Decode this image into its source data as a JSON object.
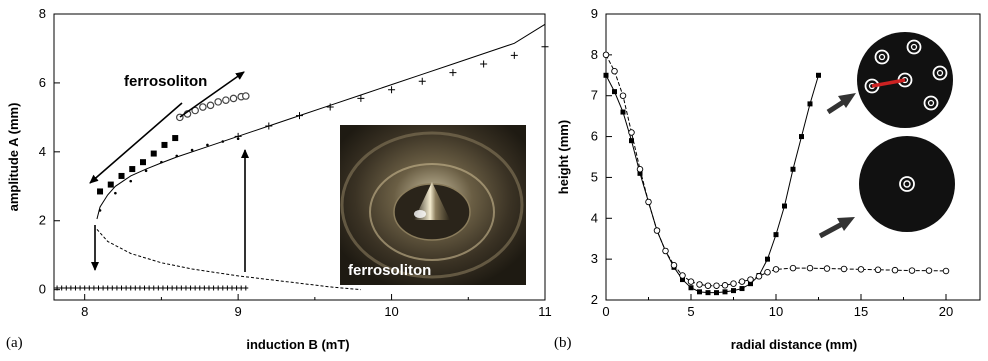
{
  "chart_data": [
    {
      "panel": "(a)",
      "type": "scatter",
      "xlabel": "induction B (mT)",
      "ylabel": "amplitude A (mm)",
      "xlim": [
        7.8,
        11
      ],
      "ylim": [
        -0.3,
        8
      ],
      "xticks": [
        "8",
        "9",
        "10",
        "11"
      ],
      "yticks": [
        "0",
        "2",
        "4",
        "6",
        "8"
      ],
      "annotations": {
        "arrow_label": "ferrosoliton",
        "photo_label": "ferrosoliton"
      },
      "series": [
        {
          "marker": "filled-square",
          "x": [
            8.1,
            8.17,
            8.24,
            8.31,
            8.38,
            8.45,
            8.52,
            8.59
          ],
          "y": [
            2.85,
            3.05,
            3.3,
            3.5,
            3.7,
            3.95,
            4.2,
            4.4
          ]
        },
        {
          "marker": "open-circle",
          "x": [
            8.62,
            8.67,
            8.72,
            8.77,
            8.82,
            8.87,
            8.92,
            8.97,
            9.02,
            9.05
          ],
          "y": [
            5.0,
            5.1,
            5.2,
            5.3,
            5.35,
            5.45,
            5.5,
            5.55,
            5.6,
            5.62
          ]
        },
        {
          "marker": "plus",
          "description": "flat surface",
          "x_range": [
            7.82,
            9.05
          ],
          "y": 0.05
        },
        {
          "marker": "dots",
          "x": [
            8.1,
            8.2,
            8.3,
            8.4,
            8.5,
            8.6,
            8.7,
            8.8,
            8.9,
            9.0
          ],
          "y": [
            2.3,
            2.8,
            3.15,
            3.45,
            3.7,
            3.88,
            4.05,
            4.2,
            4.3,
            4.38
          ]
        },
        {
          "marker": "plus",
          "x": [
            9.0,
            9.2,
            9.4,
            9.6,
            9.8,
            10.0,
            10.2,
            10.4,
            10.6,
            10.8,
            11.0
          ],
          "y": [
            4.45,
            4.75,
            5.05,
            5.3,
            5.55,
            5.8,
            6.05,
            6.3,
            6.55,
            6.8,
            7.05
          ]
        },
        {
          "line": "solid",
          "description": "theory upper branch",
          "x": [
            8.08,
            8.1,
            8.15,
            8.2,
            8.3,
            8.4,
            8.5,
            8.6,
            8.8,
            9.0,
            9.2,
            9.4,
            9.6,
            9.8,
            10.0,
            10.2,
            10.4,
            10.6,
            10.8,
            11.0
          ],
          "y": [
            2.05,
            2.4,
            2.75,
            3.0,
            3.3,
            3.5,
            3.68,
            3.85,
            4.15,
            4.45,
            4.75,
            5.05,
            5.35,
            5.65,
            5.95,
            6.25,
            6.55,
            6.85,
            7.15,
            7.7
          ]
        },
        {
          "line": "dashed",
          "description": "theory unstable branch",
          "x": [
            8.08,
            8.15,
            8.3,
            8.5,
            8.7,
            9.0,
            9.3,
            9.6,
            9.8
          ],
          "y": [
            1.75,
            1.4,
            1.05,
            0.78,
            0.6,
            0.4,
            0.24,
            0.08,
            0.0
          ]
        }
      ]
    },
    {
      "panel": "(b)",
      "type": "line",
      "xlabel": "radial distance (mm)",
      "ylabel": "height (mm)",
      "xlim": [
        0,
        22
      ],
      "ylim": [
        2,
        9
      ],
      "xticks": [
        "0",
        "5",
        "10",
        "15",
        "20"
      ],
      "yticks": [
        "2",
        "3",
        "4",
        "5",
        "6",
        "7",
        "8",
        "9"
      ],
      "series": [
        {
          "marker": "filled-square",
          "line": "solid",
          "x": [
            0,
            0.5,
            1,
            1.5,
            2,
            2.5,
            3,
            3.5,
            4,
            4.5,
            5,
            5.5,
            6,
            6.5,
            7,
            7.5,
            8,
            8.5,
            9,
            9.5,
            10,
            10.5,
            11,
            11.5,
            12,
            12.5
          ],
          "y": [
            7.5,
            7.1,
            6.6,
            5.9,
            5.1,
            4.4,
            3.7,
            3.2,
            2.8,
            2.5,
            2.3,
            2.2,
            2.18,
            2.18,
            2.2,
            2.23,
            2.28,
            2.4,
            2.6,
            3.0,
            3.6,
            4.3,
            5.2,
            6.0,
            6.8,
            7.5
          ]
        },
        {
          "marker": "open-circle",
          "line": "dashed",
          "x": [
            0,
            0.5,
            1,
            1.5,
            2,
            2.5,
            3,
            3.5,
            4,
            4.5,
            5,
            5.5,
            6,
            6.5,
            7,
            7.5,
            8,
            8.5,
            9,
            9.5,
            10,
            11,
            12,
            13,
            14,
            15,
            16,
            17,
            18,
            19,
            20
          ],
          "y": [
            8.0,
            7.6,
            7.0,
            6.1,
            5.2,
            4.4,
            3.7,
            3.2,
            2.85,
            2.6,
            2.45,
            2.38,
            2.35,
            2.35,
            2.36,
            2.4,
            2.45,
            2.5,
            2.58,
            2.68,
            2.75,
            2.78,
            2.78,
            2.77,
            2.76,
            2.75,
            2.74,
            2.73,
            2.72,
            2.72,
            2.71
          ]
        }
      ],
      "insets": [
        "hexagonal-pattern-photo",
        "single-soliton-photo"
      ]
    }
  ],
  "panel_labels": [
    "(a)",
    "(b)"
  ],
  "colors": {
    "axis": "#000000",
    "photo_bg": "#4a4233",
    "pattern_bg": "#111111",
    "red_link": "#cc2222"
  }
}
